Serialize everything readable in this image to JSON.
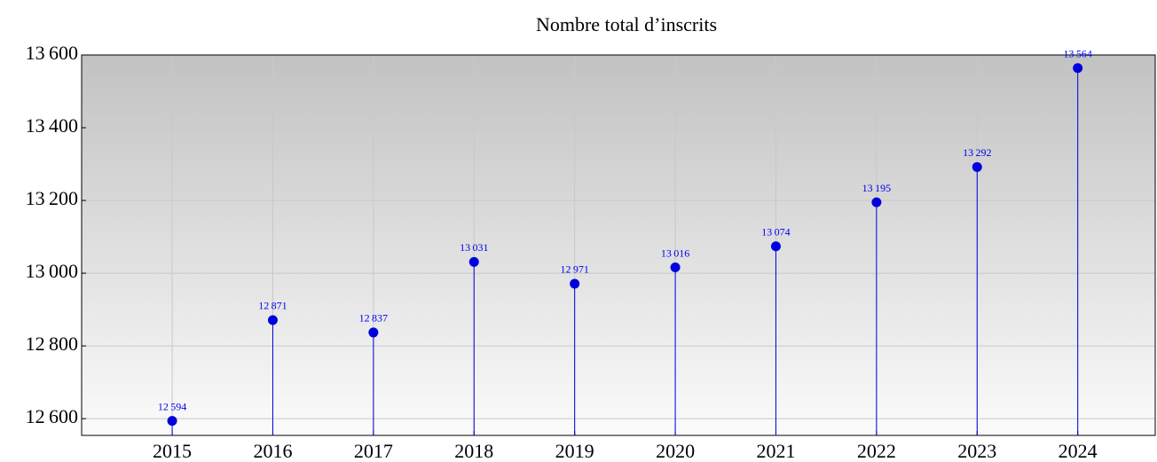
{
  "chart_data": {
    "type": "lollipop",
    "title": "Nombre total d’inscrits",
    "x": [
      2015,
      2016,
      2017,
      2018,
      2019,
      2020,
      2021,
      2022,
      2023,
      2024
    ],
    "values": [
      12594,
      12871,
      12837,
      13031,
      12971,
      13016,
      13074,
      13195,
      13292,
      13564
    ],
    "value_labels": [
      "12 594",
      "12 871",
      "12 837",
      "13 031",
      "12 971",
      "13 016",
      "13 074",
      "13 195",
      "13 292",
      "13 564"
    ],
    "color": "#0000dd",
    "xlim": [
      2014.1,
      2024.77
    ],
    "xticks": [
      2015,
      2016,
      2017,
      2018,
      2019,
      2020,
      2021,
      2022,
      2023,
      2024
    ],
    "ylim": [
      12554,
      13600
    ],
    "yticks": [
      {
        "value": 12600,
        "label": "12 600"
      },
      {
        "value": 12800,
        "label": "12 800"
      },
      {
        "value": 13000,
        "label": "13 000"
      },
      {
        "value": 13200,
        "label": "13 200"
      },
      {
        "value": 13400,
        "label": "13 400"
      },
      {
        "value": 13600,
        "label": "13 600"
      }
    ],
    "grid": true
  }
}
